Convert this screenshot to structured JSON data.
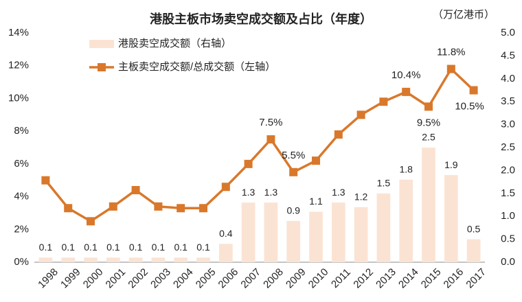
{
  "chart_data": {
    "type": "bar-line",
    "title": "港股主板市场卖空成交额及占比（年度）",
    "y2_label": "（万亿港币）",
    "categories": [
      "1998",
      "1999",
      "2000",
      "2001",
      "2002",
      "2003",
      "2004",
      "2005",
      "2006",
      "2007",
      "2008",
      "2009",
      "2010",
      "2011",
      "2012",
      "2013",
      "2014",
      "2015",
      "2016",
      "2017"
    ],
    "ylim": [
      0,
      14
    ],
    "yticks": [
      {
        "value": 0,
        "label": "0%"
      },
      {
        "value": 2,
        "label": "2%"
      },
      {
        "value": 4,
        "label": "4%"
      },
      {
        "value": 6,
        "label": "6%"
      },
      {
        "value": 8,
        "label": "8%"
      },
      {
        "value": 10,
        "label": "10%"
      },
      {
        "value": 12,
        "label": "12%"
      },
      {
        "value": 14,
        "label": "14%"
      }
    ],
    "y2lim": [
      0,
      5
    ],
    "y2ticks": [
      {
        "value": 0,
        "label": "0.0"
      },
      0.5,
      {
        "value": 1,
        "label": "1.0"
      },
      1.5,
      {
        "value": 2,
        "label": "2.0"
      },
      2.5,
      {
        "value": 3,
        "label": "3.0"
      },
      3.5,
      {
        "value": 4,
        "label": "4.0"
      },
      4.5,
      {
        "value": 5,
        "label": "5.0"
      }
    ],
    "series": [
      {
        "name": "港股卖空成交额（右轴）",
        "type": "bar",
        "axis": "y2",
        "color": "#fbe3d3",
        "values": [
          0.1,
          0.1,
          0.1,
          0.1,
          0.1,
          0.1,
          0.1,
          0.1,
          0.4,
          1.3,
          1.3,
          0.9,
          1.1,
          1.3,
          1.2,
          1.5,
          1.8,
          2.5,
          1.9,
          0.5
        ]
      },
      {
        "name": "主板卖空成交额/总成交额（左轴）",
        "type": "line",
        "axis": "y",
        "color": "#d9782b",
        "values": [
          5.0,
          3.3,
          2.5,
          3.4,
          4.4,
          3.4,
          3.3,
          3.3,
          4.6,
          6.0,
          7.5,
          5.5,
          6.2,
          7.8,
          9.0,
          9.8,
          10.4,
          9.5,
          11.8,
          10.5
        ],
        "value_labels": [
          null,
          null,
          null,
          null,
          null,
          null,
          null,
          null,
          null,
          null,
          "7.5%",
          "5.5%",
          null,
          null,
          null,
          null,
          "10.4%",
          "9.5%",
          "11.8%",
          "10.5%"
        ]
      }
    ]
  }
}
